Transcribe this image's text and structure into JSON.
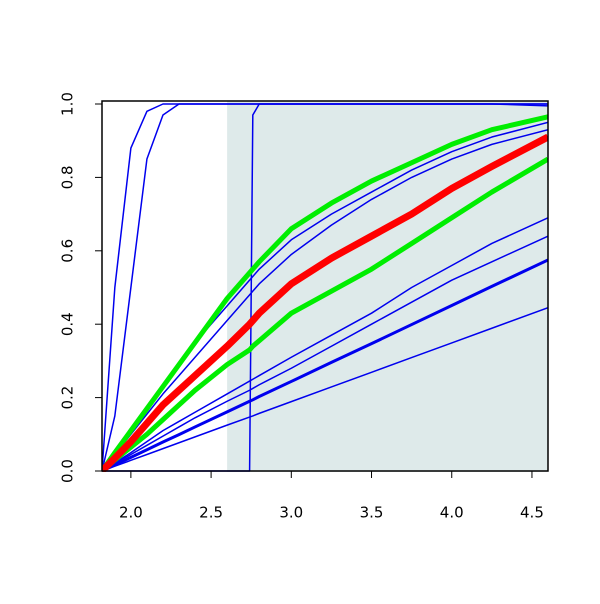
{
  "chart_data": {
    "type": "line",
    "x": [
      1.82,
      1.9,
      2.0,
      2.1,
      2.2,
      2.3,
      2.4,
      2.6,
      2.74,
      2.76,
      2.8,
      3.0,
      3.25,
      3.5,
      3.75,
      4.0,
      4.25,
      4.6
    ],
    "xlim": [
      1.82,
      4.6
    ],
    "xticks": [
      {
        "value": 2,
        "label": "2.0"
      },
      2.5,
      {
        "value": 3,
        "label": "3.0"
      },
      3.5,
      {
        "value": 4,
        "label": "4.0"
      },
      4.5
    ],
    "ylim": [
      0,
      1
    ],
    "yticks": [
      {
        "value": 0,
        "label": "0.0"
      },
      0.2,
      0.4,
      0.6,
      0.8,
      {
        "value": 1,
        "label": "1.0"
      }
    ],
    "shaded_region": {
      "x": [
        2.6,
        4.6
      ],
      "color": "#deeaea"
    },
    "series": [
      {
        "color": "#0000ee",
        "width": 1.5,
        "values": [
          0,
          0.5,
          0.88,
          0.98,
          1,
          1,
          1,
          1,
          1,
          1,
          1,
          1,
          1,
          1,
          1,
          1,
          1,
          1
        ]
      },
      {
        "color": "#0000ee",
        "width": 1.5,
        "values": [
          0,
          0.15,
          0.5,
          0.85,
          0.97,
          1,
          1,
          1,
          1,
          1,
          1,
          1,
          1,
          1,
          1,
          1,
          1,
          0.995
        ]
      },
      {
        "color": "#0000ee",
        "width": 1.5,
        "values": [
          0,
          0,
          0,
          0,
          0,
          0,
          0,
          0,
          0,
          0.97,
          1,
          1,
          1,
          1,
          1,
          1,
          1,
          1
        ]
      },
      {
        "color": "#0000ee",
        "width": 1.5,
        "values": [
          0,
          0.013,
          0.029,
          0.045,
          0.061,
          0.077,
          0.093,
          0.125,
          0.147,
          0.15,
          0.157,
          0.189,
          0.229,
          0.269,
          0.309,
          0.349,
          0.389,
          0.445
        ]
      },
      {
        "color": "#0000ee",
        "width": 3,
        "values": [
          0,
          0.017,
          0.037,
          0.058,
          0.079,
          0.099,
          0.12,
          0.161,
          0.19,
          0.194,
          0.203,
          0.244,
          0.296,
          0.347,
          0.399,
          0.451,
          0.503,
          0.575
        ]
      },
      {
        "color": "#0000ee",
        "width": 1.5,
        "values": [
          0,
          0.02,
          0.045,
          0.07,
          0.095,
          0.12,
          0.145,
          0.19,
          0.22,
          0.225,
          0.235,
          0.28,
          0.34,
          0.4,
          0.46,
          0.52,
          0.57,
          0.64
        ]
      },
      {
        "color": "#0000ee",
        "width": 1.5,
        "values": [
          0,
          0.022,
          0.05,
          0.08,
          0.11,
          0.135,
          0.16,
          0.21,
          0.245,
          0.25,
          0.26,
          0.31,
          0.37,
          0.43,
          0.5,
          0.56,
          0.62,
          0.69
        ]
      },
      {
        "color": "#0000ee",
        "width": 1.5,
        "values": [
          0,
          0.05,
          0.11,
          0.17,
          0.23,
          0.29,
          0.35,
          0.45,
          0.52,
          0.53,
          0.55,
          0.63,
          0.7,
          0.76,
          0.82,
          0.87,
          0.91,
          0.95
        ]
      },
      {
        "color": "#0000ee",
        "width": 1.5,
        "values": [
          0,
          0.045,
          0.1,
          0.155,
          0.21,
          0.26,
          0.31,
          0.41,
          0.48,
          0.49,
          0.51,
          0.59,
          0.67,
          0.74,
          0.8,
          0.85,
          0.89,
          0.93
        ]
      },
      {
        "color": "#00ee00",
        "width": 5,
        "values": [
          0,
          0.05,
          0.11,
          0.17,
          0.23,
          0.29,
          0.35,
          0.47,
          0.54,
          0.55,
          0.57,
          0.66,
          0.73,
          0.79,
          0.84,
          0.89,
          0.93,
          0.965
        ]
      },
      {
        "color": "#00ee00",
        "width": 5,
        "values": [
          0,
          0.03,
          0.065,
          0.1,
          0.14,
          0.18,
          0.22,
          0.29,
          0.33,
          0.34,
          0.355,
          0.43,
          0.49,
          0.55,
          0.62,
          0.69,
          0.76,
          0.85
        ]
      },
      {
        "color": "#ff0000",
        "width": 7,
        "values": [
          0,
          0.035,
          0.08,
          0.13,
          0.18,
          0.22,
          0.26,
          0.34,
          0.4,
          0.41,
          0.43,
          0.51,
          0.58,
          0.64,
          0.7,
          0.77,
          0.83,
          0.91
        ]
      }
    ]
  }
}
